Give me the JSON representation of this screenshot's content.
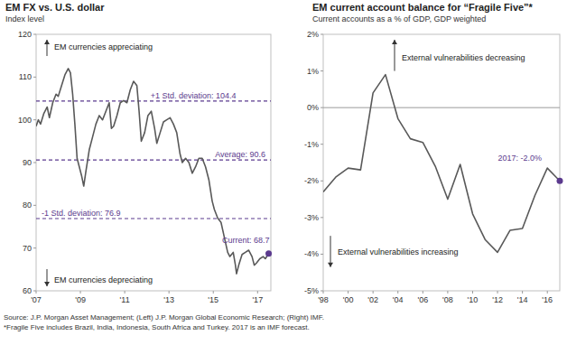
{
  "chart_data": [
    {
      "type": "line",
      "title": "EM FX vs. U.S. dollar",
      "subtitle": "Index level",
      "x": [
        2007.0,
        2007.1,
        2007.2,
        2007.35,
        2007.5,
        2007.6,
        2007.75,
        2007.9,
        2008.0,
        2008.15,
        2008.3,
        2008.45,
        2008.55,
        2008.65,
        2008.75,
        2008.85,
        2008.95,
        2009.05,
        2009.15,
        2009.25,
        2009.4,
        2009.55,
        2009.7,
        2009.85,
        2010.0,
        2010.15,
        2010.3,
        2010.4,
        2010.5,
        2010.65,
        2010.8,
        2010.95,
        2011.1,
        2011.25,
        2011.4,
        2011.55,
        2011.65,
        2011.75,
        2011.9,
        2012.05,
        2012.2,
        2012.35,
        2012.45,
        2012.6,
        2012.75,
        2012.9,
        2013.05,
        2013.2,
        2013.35,
        2013.5,
        2013.6,
        2013.75,
        2013.9,
        2014.05,
        2014.2,
        2014.35,
        2014.5,
        2014.65,
        2014.8,
        2014.95,
        2015.05,
        2015.2,
        2015.35,
        2015.5,
        2015.65,
        2015.75,
        2015.9,
        2016.0,
        2016.05,
        2016.15,
        2016.3,
        2016.45,
        2016.6,
        2016.75,
        2016.85,
        2016.95,
        2017.1,
        2017.25,
        2017.35,
        2017.5
      ],
      "values": [
        98.5,
        100,
        99,
        101.5,
        103,
        100.5,
        104,
        106,
        105.5,
        108,
        110.5,
        112,
        111,
        106,
        99,
        91,
        89,
        87,
        84.5,
        88,
        93,
        96,
        99,
        101,
        100,
        102,
        104,
        98,
        98.5,
        101,
        104,
        104.5,
        104,
        107,
        109,
        108,
        102,
        95,
        97,
        101,
        102,
        98,
        94.5,
        97,
        99.5,
        100,
        100.5,
        99,
        97,
        92,
        90,
        91,
        90,
        87.5,
        89,
        91,
        91,
        89,
        86,
        81,
        79,
        77,
        76,
        72.5,
        69,
        68,
        69,
        66,
        64,
        66,
        68.5,
        69,
        69.5,
        68,
        66,
        66.5,
        67.5,
        68,
        67.5,
        68.7
      ],
      "color": "#595959",
      "xlim": [
        2007,
        2017.6
      ],
      "xticks": [
        {
          "value": 2007,
          "label": "'07"
        },
        {
          "value": 2009,
          "label": "'09"
        },
        {
          "value": 2011,
          "label": "'11"
        },
        {
          "value": 2013,
          "label": "'13"
        },
        {
          "value": 2015,
          "label": "'15"
        },
        {
          "value": 2017,
          "label": "'17"
        }
      ],
      "ylim": [
        60,
        120
      ],
      "yticks": [
        60,
        70,
        80,
        90,
        100,
        110,
        120
      ],
      "grid": false,
      "reference_lines": [
        {
          "value": 104.4,
          "label": "+1 Std. deviation: 104.4"
        },
        {
          "value": 90.6,
          "label": "Average: 90.6"
        },
        {
          "value": 76.9,
          "label": "-1 Std. deviation: 76.9"
        }
      ],
      "annotations": [
        "EM currencies appreciating",
        "EM currencies depreciating",
        "Current: 68.7"
      ]
    },
    {
      "type": "line",
      "title": "EM current account balance for “Fragile Five”*",
      "subtitle": "Current accounts as a % of GDP, GDP weighted",
      "x": [
        1998,
        1999,
        2000,
        2001,
        2002,
        2003,
        2004,
        2005,
        2006,
        2007,
        2008,
        2009,
        2010,
        2011,
        2012,
        2013,
        2014,
        2015,
        2016,
        2017
      ],
      "values": [
        -2.3,
        -1.9,
        -1.65,
        -1.7,
        0.4,
        0.9,
        -0.3,
        -0.85,
        -0.95,
        -1.6,
        -2.5,
        -1.55,
        -2.9,
        -3.6,
        -3.95,
        -3.35,
        -3.3,
        -2.4,
        -1.65,
        -2.0
      ],
      "color": "#595959",
      "xlim": [
        1998,
        2017
      ],
      "xticks": [
        {
          "value": 1998,
          "label": "'98"
        },
        {
          "value": 2000,
          "label": "'00"
        },
        {
          "value": 2002,
          "label": "'02"
        },
        {
          "value": 2004,
          "label": "'04"
        },
        {
          "value": 2006,
          "label": "'06"
        },
        {
          "value": 2008,
          "label": "'08"
        },
        {
          "value": 2010,
          "label": "'10"
        },
        {
          "value": 2012,
          "label": "'12"
        },
        {
          "value": 2014,
          "label": "'14"
        },
        {
          "value": 2016,
          "label": "'16"
        }
      ],
      "ylim": [
        -5,
        2
      ],
      "yticks": [
        {
          "value": 2,
          "label": "2%"
        },
        {
          "value": 1,
          "label": "1%"
        },
        {
          "value": 0,
          "label": "0%"
        },
        {
          "value": -1,
          "label": "-1%"
        },
        {
          "value": -2,
          "label": "-2%"
        },
        {
          "value": -3,
          "label": "-3%"
        },
        {
          "value": -4,
          "label": "-4%"
        },
        {
          "value": -5,
          "label": "-5%"
        }
      ],
      "grid": false,
      "annotations": [
        "External vulnerabilities decreasing",
        "External vulnerabilities increasing",
        "2017: -2.0%"
      ]
    }
  ],
  "notes": [
    "Source: J.P. Morgan Asset Management; (Left) J.P. Morgan Global Economic Research; (Right) IMF.",
    "*Fragile Five includes Brazil, India, Indonesia, South Africa and Turkey. 2017 is an IMF forecast."
  ]
}
